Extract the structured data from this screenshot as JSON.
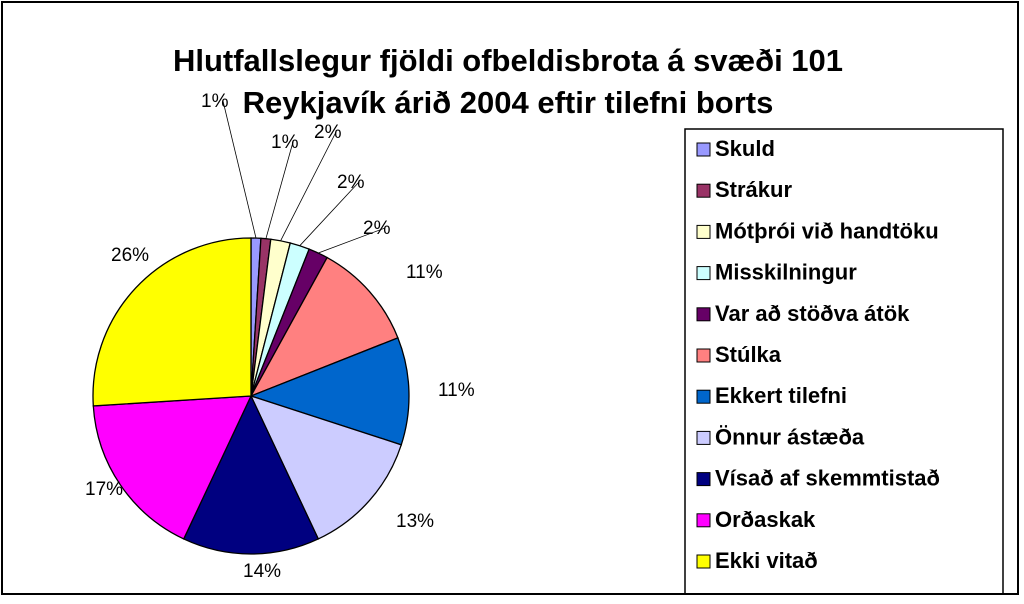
{
  "chart_data": {
    "type": "pie",
    "title": [
      "Hlutfallslegur fjöldi ofbeldisbrota á svæði 101",
      "Reykjavík árið 2004 eftir tilefni borts"
    ],
    "legend_position": "right",
    "slices": [
      {
        "label": "Skuld",
        "value": 1,
        "display": "1%",
        "color": "#9999ff"
      },
      {
        "label": "Strákur",
        "value": 1,
        "display": "1%",
        "color": "#993366"
      },
      {
        "label": "Mótþrói við handtöku",
        "value": 2,
        "display": "2%",
        "color": "#ffffcc"
      },
      {
        "label": "Misskilningur",
        "value": 2,
        "display": "2%",
        "color": "#ccffff"
      },
      {
        "label": "Var að stöðva átök",
        "value": 2,
        "display": "2%",
        "color": "#660066"
      },
      {
        "label": "Stúlka",
        "value": 11,
        "display": "11%",
        "color": "#ff8080"
      },
      {
        "label": "Ekkert tilefni",
        "value": 11,
        "display": "11%",
        "color": "#0066cc"
      },
      {
        "label": "Önnur ástæða",
        "value": 13,
        "display": "13%",
        "color": "#ccccff"
      },
      {
        "label": "Vísað af skemmtistað",
        "value": 14,
        "display": "14%",
        "color": "#000080"
      },
      {
        "label": "Orðaskak",
        "value": 17,
        "display": "17%",
        "color": "#ff00ff"
      },
      {
        "label": "Ekki vitað",
        "value": 26,
        "display": "26%",
        "color": "#ffff00"
      }
    ]
  }
}
